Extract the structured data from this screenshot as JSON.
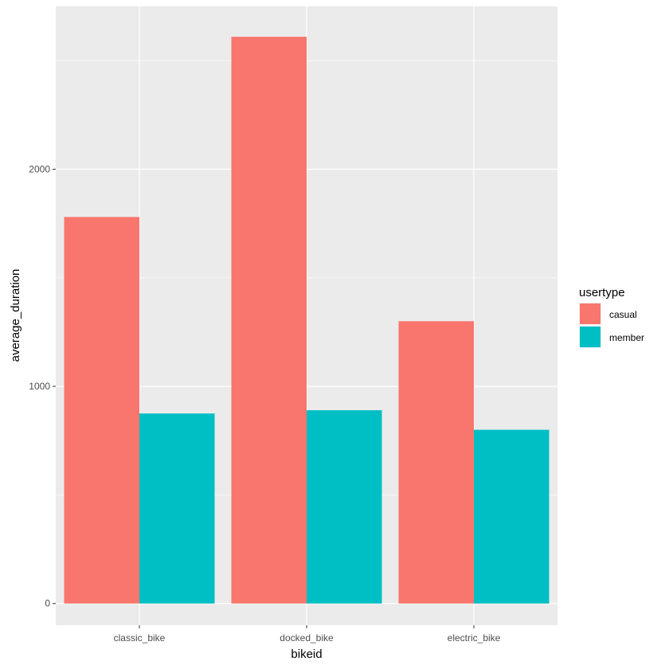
{
  "chart_data": {
    "type": "bar",
    "categories": [
      "classic_bike",
      "docked_bike",
      "electric_bike"
    ],
    "series": [
      {
        "name": "casual",
        "color": "#F8766D",
        "values": [
          1780,
          2610,
          1300
        ]
      },
      {
        "name": "member",
        "color": "#00BFC4",
        "values": [
          875,
          890,
          800
        ]
      }
    ],
    "title": "",
    "xlabel": "bikeid",
    "ylabel": "average_duration",
    "ylim": [
      -100,
      2750
    ],
    "yticks": [
      0,
      1000,
      2000
    ],
    "ytick_labels": [
      "0",
      "1000",
      "2000"
    ],
    "grid": true,
    "panel_color": "#EBEBEB",
    "gridline_color": "#FFFFFF",
    "legend": {
      "title": "usertype",
      "position": "right"
    }
  }
}
